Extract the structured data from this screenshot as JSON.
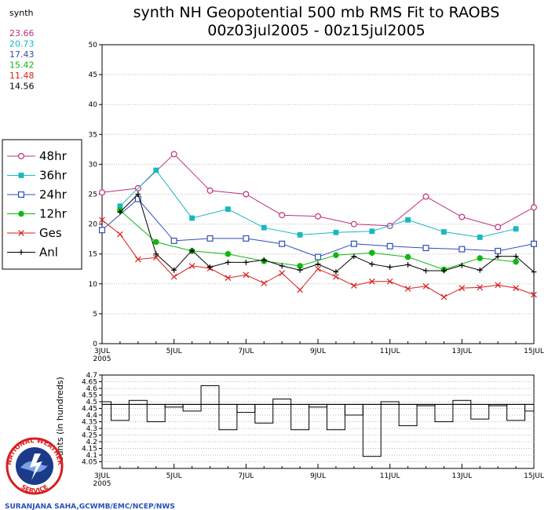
{
  "title_line1": "synth NH Geopotential 500 mb RMS Fit to RAOBS",
  "title_line2": "00z03jul2005 - 00z15jul2005",
  "summary": {
    "label": "synth",
    "values": [
      {
        "text": "23.66",
        "color": "#c0307f"
      },
      {
        "text": "20.73",
        "color": "#17b8c0"
      },
      {
        "text": "17.43",
        "color": "#2f4fb8"
      },
      {
        "text": "15.42",
        "color": "#11b711"
      },
      {
        "text": "11.48",
        "color": "#d81e1e"
      },
      {
        "text": "14.56",
        "color": "#000000"
      }
    ]
  },
  "credit": "SURANJANA SAHA,GCWMB/EMC/NCEP/NWS",
  "logo": {
    "top": "NATIONAL WEATHER",
    "bottom": "SERVICE"
  },
  "chart_data": [
    {
      "type": "line",
      "title": "synth NH Geopotential 500 mb RMS Fit to RAOBS",
      "x_ticks": [
        "3JUL\n2005",
        "5JUL",
        "7JUL",
        "9JUL",
        "11JUL",
        "13JUL",
        "15JUL"
      ],
      "xlim": [
        0,
        12
      ],
      "ylim": [
        0,
        50
      ],
      "y_ticks": [
        0,
        5,
        10,
        15,
        20,
        25,
        30,
        35,
        40,
        45,
        50
      ],
      "legend_position": "left",
      "series": [
        {
          "name": "48hr",
          "color": "#c0307f",
          "marker": "open-circle",
          "x": [
            0,
            1,
            2,
            3,
            4,
            5,
            6,
            7,
            8,
            9,
            10,
            11,
            12
          ],
          "y": [
            25.3,
            26.0,
            31.7,
            25.6,
            25.0,
            21.5,
            21.3,
            20.0,
            19.7,
            24.6,
            21.2,
            19.5,
            22.8
          ]
        },
        {
          "name": "36hr",
          "color": "#17b8c0",
          "marker": "filled-square",
          "x": [
            0.5,
            1.5,
            2.5,
            3.5,
            4.5,
            5.5,
            6.5,
            7.5,
            8.5,
            9.5,
            10.5,
            11.5
          ],
          "y": [
            23.0,
            29.0,
            21.0,
            22.5,
            19.4,
            18.2,
            18.6,
            18.8,
            20.7,
            18.7,
            17.8,
            19.2
          ]
        },
        {
          "name": "24hr",
          "color": "#2f4fb8",
          "marker": "open-square",
          "x": [
            0,
            1,
            2,
            3,
            4,
            5,
            6,
            7,
            8,
            9,
            10,
            11,
            12
          ],
          "y": [
            19.0,
            24.2,
            17.2,
            17.6,
            17.6,
            16.7,
            14.5,
            16.7,
            16.3,
            16.0,
            15.8,
            15.5,
            16.7
          ]
        },
        {
          "name": "12hr",
          "color": "#11b711",
          "marker": "filled-circle",
          "x": [
            0.5,
            1.5,
            2.5,
            3.5,
            4.5,
            5.5,
            6.5,
            7.5,
            8.5,
            9.5,
            10.5,
            11.5
          ],
          "y": [
            22.3,
            17.0,
            15.5,
            15.0,
            13.8,
            13.0,
            14.8,
            15.2,
            14.5,
            12.4,
            14.3,
            13.7
          ]
        },
        {
          "name": "Ges",
          "color": "#d81e1e",
          "marker": "x",
          "x": [
            0,
            0.5,
            1,
            1.5,
            2,
            2.5,
            3,
            3.5,
            4,
            4.5,
            5,
            5.5,
            6,
            6.5,
            7,
            7.5,
            8,
            8.5,
            9,
            9.5,
            10,
            10.5,
            11,
            11.5,
            12
          ],
          "y": [
            20.7,
            18.3,
            14.1,
            14.4,
            11.2,
            13.0,
            12.6,
            11.0,
            11.5,
            10.1,
            11.8,
            9.0,
            12.5,
            11.2,
            9.7,
            10.4,
            10.4,
            9.2,
            9.6,
            7.8,
            9.3,
            9.4,
            9.8,
            9.3,
            8.2
          ]
        },
        {
          "name": "Anl",
          "color": "#000000",
          "marker": "plus",
          "x": [
            0.5,
            1,
            1.5,
            2,
            2.5,
            3,
            3.5,
            4,
            4.5,
            5,
            5.5,
            6,
            6.5,
            7,
            7.5,
            8,
            8.5,
            9,
            9.5,
            10,
            10.5,
            11,
            11.5,
            12
          ],
          "y": [
            22.0,
            25.0,
            15.0,
            12.3,
            15.6,
            12.8,
            13.6,
            13.6,
            14.0,
            13.0,
            12.3,
            13.3,
            12.0,
            14.6,
            13.3,
            12.8,
            13.2,
            12.2,
            12.2,
            13.1,
            12.3,
            14.6,
            14.6,
            12.0
          ]
        }
      ]
    },
    {
      "type": "bar",
      "title": "",
      "ylabel": "Counts (in hundreds)",
      "x_ticks": [
        "3JUL\n2005",
        "5JUL",
        "7JUL",
        "9JUL",
        "11JUL",
        "13JUL",
        "15JUL"
      ],
      "xlim": [
        0,
        12
      ],
      "ylim": [
        4.0,
        4.7
      ],
      "y_ticks": [
        "4.05",
        "4.1",
        "4.15",
        "4.2",
        "4.25",
        "4.3",
        "4.35",
        "4.4",
        "4.45",
        "4.5",
        "4.55",
        "4.6",
        "4.65",
        "4.7"
      ],
      "reference": 4.48,
      "x": [
        0,
        0.5,
        1,
        1.5,
        2,
        2.5,
        3,
        3.5,
        4,
        4.5,
        5,
        5.5,
        6,
        6.5,
        7,
        7.5,
        8,
        8.5,
        9,
        9.5,
        10,
        10.5,
        11,
        11.5,
        12
      ],
      "values": [
        4.5,
        4.36,
        4.51,
        4.35,
        4.46,
        4.43,
        4.62,
        4.29,
        4.42,
        4.34,
        4.52,
        4.29,
        4.46,
        4.29,
        4.4,
        4.09,
        4.5,
        4.32,
        4.47,
        4.35,
        4.51,
        4.37,
        4.47,
        4.36,
        4.43
      ]
    }
  ]
}
